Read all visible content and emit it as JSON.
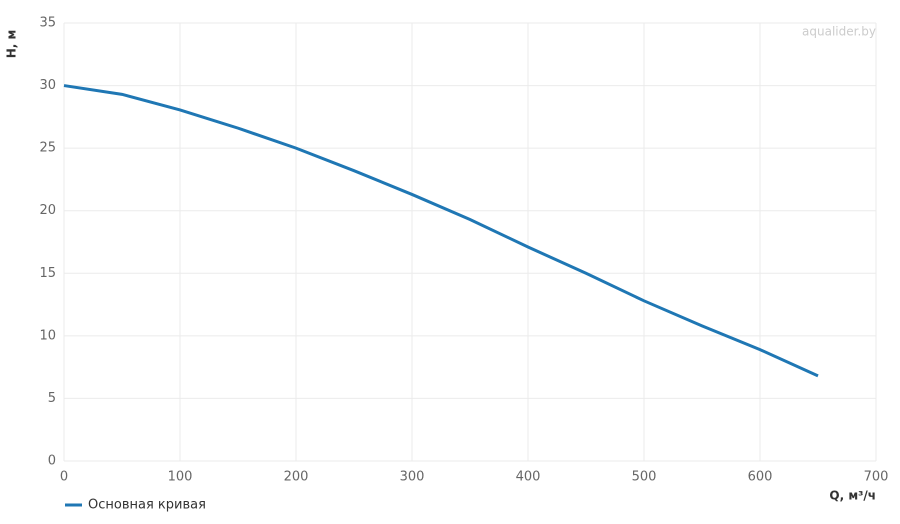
{
  "chart_data": {
    "type": "line",
    "x_label": "Q, м³/ч",
    "y_label": "H, м",
    "watermark": "aqualider.by",
    "x": [
      0,
      50,
      100,
      150,
      200,
      250,
      300,
      350,
      400,
      450,
      500,
      550,
      600,
      650
    ],
    "series": [
      {
        "name": "Основная кривая",
        "color": "#1f77b4",
        "values": [
          30,
          29.3,
          28.05,
          26.6,
          25.0,
          23.2,
          21.3,
          19.3,
          17.1,
          15.0,
          12.8,
          10.8,
          8.9,
          6.8
        ]
      }
    ],
    "xlim": [
      0,
      700
    ],
    "xticks": [
      0,
      100,
      200,
      300,
      400,
      500,
      600,
      700
    ],
    "ylim": [
      0,
      35
    ],
    "yticks": [
      0,
      5,
      10,
      15,
      20,
      25,
      30,
      35
    ],
    "grid": true,
    "legend": "bottom-left"
  }
}
